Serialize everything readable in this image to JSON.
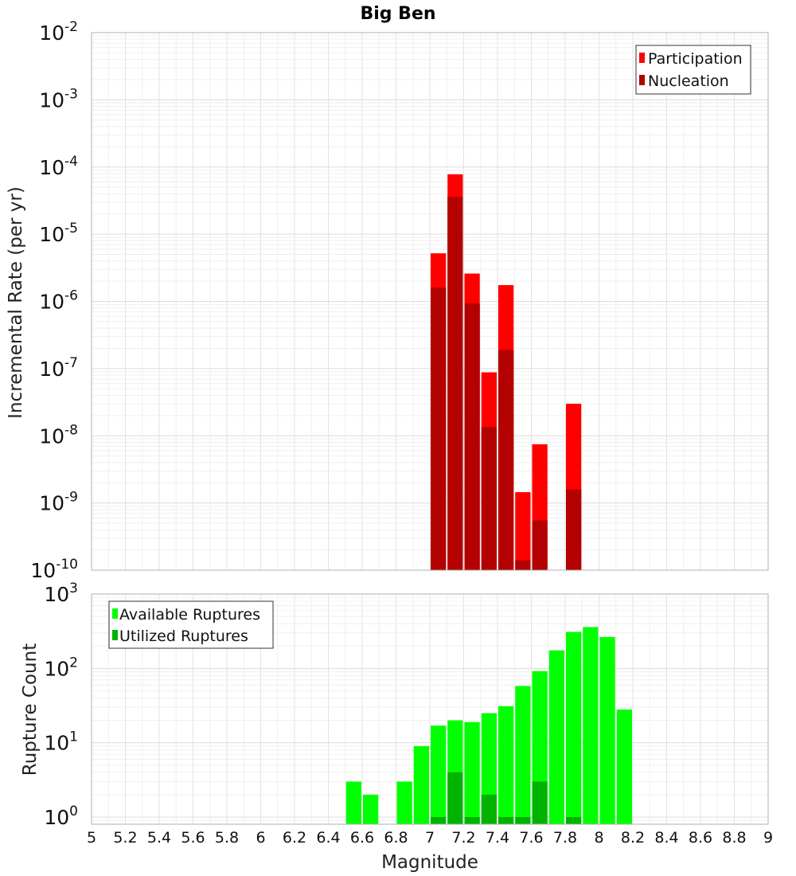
{
  "title": "Big Ben",
  "xlabel": "Magnitude",
  "colors": {
    "participation": "#ff0000",
    "nucleation": "#b30000",
    "available": "#00ff00",
    "utilized": "#00b300",
    "grid": "#e6e6e6",
    "frame": "#b0b0b0"
  },
  "chart_data": [
    {
      "type": "bar",
      "ylabel": "Incremental Rate (per yr)",
      "yscale": "log",
      "ylim": [
        1e-10,
        0.01
      ],
      "xlim": [
        5,
        9
      ],
      "grid": true,
      "legend_position": "top-right",
      "x": [
        7.05,
        7.15,
        7.25,
        7.35,
        7.45,
        7.55,
        7.65,
        7.85
      ],
      "series": [
        {
          "name": "Participation",
          "values": [
            5.2e-06,
            7.8e-05,
            2.6e-06,
            8.8e-08,
            1.75e-06,
            1.45e-09,
            7.5e-09,
            3e-08
          ]
        },
        {
          "name": "Nucleation",
          "values": [
            1.6e-06,
            3.6e-05,
            9.3e-07,
            1.35e-08,
            1.9e-07,
            1.4e-10,
            5.5e-10,
            1.6e-09
          ]
        }
      ],
      "y_ticks": [
        {
          "base": "10",
          "exp": "-10",
          "value": 1e-10
        },
        {
          "base": "10",
          "exp": "-9",
          "value": 1e-09
        },
        {
          "base": "10",
          "exp": "-8",
          "value": 1e-08
        },
        {
          "base": "10",
          "exp": "-7",
          "value": 1e-07
        },
        {
          "base": "10",
          "exp": "-6",
          "value": 1e-06
        },
        {
          "base": "10",
          "exp": "-5",
          "value": 1e-05
        },
        {
          "base": "10",
          "exp": "-4",
          "value": 0.0001
        },
        {
          "base": "10",
          "exp": "-3",
          "value": 0.001
        },
        {
          "base": "10",
          "exp": "-2",
          "value": 0.01
        }
      ]
    },
    {
      "type": "bar",
      "ylabel": "Rupture Count",
      "yscale": "log",
      "ylim": [
        0.8,
        1000
      ],
      "xlim": [
        5,
        9
      ],
      "grid": true,
      "legend_position": "top-left",
      "x": [
        6.55,
        6.65,
        6.75,
        6.85,
        6.95,
        7.05,
        7.15,
        7.25,
        7.35,
        7.45,
        7.55,
        7.65,
        7.75,
        7.85,
        7.95,
        8.05,
        8.15
      ],
      "series": [
        {
          "name": "Available Ruptures",
          "values": [
            3,
            2,
            0,
            3,
            9,
            17,
            20,
            19,
            25,
            31,
            58,
            92,
            175,
            310,
            360,
            265,
            28
          ]
        },
        {
          "name": "Utilized Ruptures",
          "values": [
            0,
            0,
            0,
            0,
            0,
            1,
            4,
            1,
            2,
            1,
            1,
            3,
            0,
            1,
            0,
            0,
            0
          ]
        }
      ],
      "y_ticks": [
        {
          "base": "10",
          "exp": "0",
          "value": 1
        },
        {
          "base": "10",
          "exp": "1",
          "value": 10
        },
        {
          "base": "10",
          "exp": "2",
          "value": 100
        },
        {
          "base": "10",
          "exp": "3",
          "value": 1000
        }
      ]
    }
  ],
  "x_ticks": [
    "5",
    "5.2",
    "5.4",
    "5.6",
    "5.8",
    "6",
    "6.2",
    "6.4",
    "6.6",
    "6.8",
    "7",
    "7.2",
    "7.4",
    "7.6",
    "7.8",
    "8",
    "8.2",
    "8.4",
    "8.6",
    "8.8",
    "9"
  ]
}
